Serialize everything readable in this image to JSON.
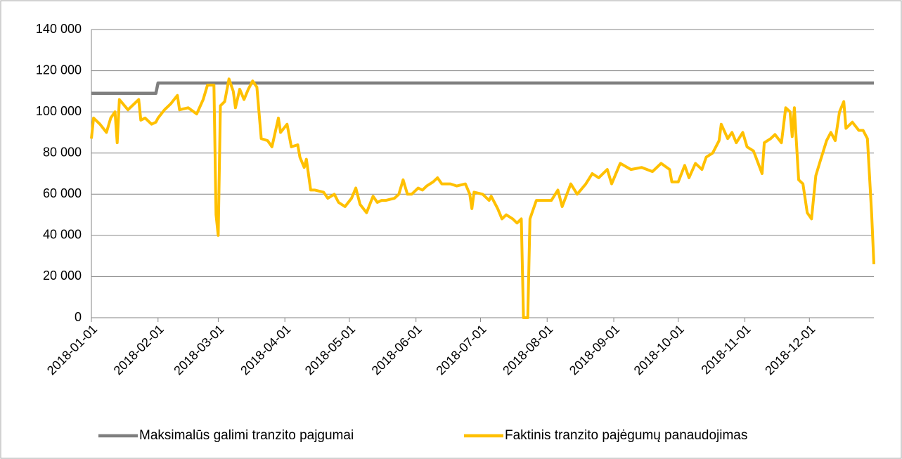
{
  "chart_data": {
    "type": "line",
    "x": [
      "2018-01-01",
      "2018-01-02",
      "2018-01-05",
      "2018-01-08",
      "2018-01-10",
      "2018-01-12",
      "2018-01-13",
      "2018-01-14",
      "2018-01-18",
      "2018-01-21",
      "2018-01-23",
      "2018-01-24",
      "2018-01-26",
      "2018-01-29",
      "2018-01-31",
      "2018-02-01",
      "2018-02-04",
      "2018-02-07",
      "2018-02-10",
      "2018-02-11",
      "2018-02-15",
      "2018-02-19",
      "2018-02-22",
      "2018-02-24",
      "2018-02-27",
      "2018-02-28",
      "2018-03-01",
      "2018-03-02",
      "2018-03-04",
      "2018-03-06",
      "2018-03-08",
      "2018-03-09",
      "2018-03-11",
      "2018-03-13",
      "2018-03-15",
      "2018-03-17",
      "2018-03-19",
      "2018-03-21",
      "2018-03-24",
      "2018-03-26",
      "2018-03-29",
      "2018-03-30",
      "2018-04-02",
      "2018-04-04",
      "2018-04-07",
      "2018-04-08",
      "2018-04-10",
      "2018-04-11",
      "2018-04-13",
      "2018-04-15",
      "2018-04-19",
      "2018-04-21",
      "2018-04-24",
      "2018-04-26",
      "2018-04-29",
      "2018-05-02",
      "2018-05-04",
      "2018-05-06",
      "2018-05-09",
      "2018-05-12",
      "2018-05-14",
      "2018-05-16",
      "2018-05-18",
      "2018-05-22",
      "2018-05-24",
      "2018-05-26",
      "2018-05-28",
      "2018-05-30",
      "2018-06-02",
      "2018-06-04",
      "2018-06-06",
      "2018-06-09",
      "2018-06-11",
      "2018-06-13",
      "2018-06-17",
      "2018-06-20",
      "2018-06-24",
      "2018-06-26",
      "2018-06-27",
      "2018-06-28",
      "2018-07-02",
      "2018-07-05",
      "2018-07-06",
      "2018-07-09",
      "2018-07-11",
      "2018-07-13",
      "2018-07-16",
      "2018-07-18",
      "2018-07-20",
      "2018-07-21",
      "2018-07-23",
      "2018-07-24",
      "2018-07-27",
      "2018-07-30",
      "2018-08-03",
      "2018-08-06",
      "2018-08-08",
      "2018-08-12",
      "2018-08-15",
      "2018-08-19",
      "2018-08-22",
      "2018-08-25",
      "2018-08-29",
      "2018-08-31",
      "2018-09-04",
      "2018-09-09",
      "2018-09-14",
      "2018-09-19",
      "2018-09-23",
      "2018-09-27",
      "2018-09-28",
      "2018-10-01",
      "2018-10-04",
      "2018-10-06",
      "2018-10-09",
      "2018-10-12",
      "2018-10-14",
      "2018-10-17",
      "2018-10-20",
      "2018-10-21",
      "2018-10-24",
      "2018-10-26",
      "2018-10-28",
      "2018-10-31",
      "2018-11-02",
      "2018-11-05",
      "2018-11-09",
      "2018-11-10",
      "2018-11-13",
      "2018-11-15",
      "2018-11-18",
      "2018-11-20",
      "2018-11-22",
      "2018-11-23",
      "2018-11-24",
      "2018-11-26",
      "2018-11-28",
      "2018-11-30",
      "2018-12-02",
      "2018-12-04",
      "2018-12-06",
      "2018-12-09",
      "2018-12-11",
      "2018-12-13",
      "2018-12-15",
      "2018-12-17",
      "2018-12-18",
      "2018-12-21",
      "2018-12-24",
      "2018-12-26",
      "2018-12-28",
      "2018-12-30",
      "2018-12-31"
    ],
    "series": [
      {
        "name": "Maksimalūs galimi tranzito pajgumai",
        "color": "#7f7f7f",
        "values": [
          109000,
          109000,
          109000,
          109000,
          109000,
          109000,
          109000,
          109000,
          109000,
          109000,
          109000,
          109000,
          109000,
          109000,
          109000,
          114000,
          114000,
          114000,
          114000,
          114000,
          114000,
          114000,
          114000,
          114000,
          114000,
          114000,
          114000,
          114000,
          114000,
          114000,
          114000,
          114000,
          114000,
          114000,
          114000,
          114000,
          114000,
          114000,
          114000,
          114000,
          114000,
          114000,
          114000,
          114000,
          114000,
          114000,
          114000,
          114000,
          114000,
          114000,
          114000,
          114000,
          114000,
          114000,
          114000,
          114000,
          114000,
          114000,
          114000,
          114000,
          114000,
          114000,
          114000,
          114000,
          114000,
          114000,
          114000,
          114000,
          114000,
          114000,
          114000,
          114000,
          114000,
          114000,
          114000,
          114000,
          114000,
          114000,
          114000,
          114000,
          114000,
          114000,
          114000,
          114000,
          114000,
          114000,
          114000,
          114000,
          114000,
          114000,
          114000,
          114000,
          114000,
          114000,
          114000,
          114000,
          114000,
          114000,
          114000,
          114000,
          114000,
          114000,
          114000,
          114000,
          114000,
          114000,
          114000,
          114000,
          114000,
          114000,
          114000,
          114000,
          114000,
          114000,
          114000,
          114000,
          114000,
          114000,
          114000,
          114000,
          114000,
          114000,
          114000,
          114000,
          114000,
          114000,
          114000,
          114000,
          114000,
          114000,
          114000,
          114000,
          114000,
          114000,
          114000,
          114000,
          114000,
          114000,
          114000,
          114000,
          114000,
          114000,
          114000,
          114000,
          114000,
          114000,
          114000,
          114000,
          114000,
          114000,
          114000,
          114000,
          114000
        ]
      },
      {
        "name": "Faktinis tranzito pajėgumų panaudojimas",
        "color": "#ffc000",
        "values": [
          87000,
          97000,
          94000,
          90000,
          97000,
          100000,
          85000,
          106000,
          101000,
          104000,
          106000,
          96000,
          97000,
          94000,
          95000,
          97000,
          101000,
          104000,
          108000,
          101000,
          102000,
          99000,
          106000,
          113000,
          113000,
          50000,
          40000,
          103000,
          105000,
          116000,
          110000,
          102000,
          111000,
          106000,
          111000,
          115000,
          112000,
          87000,
          86000,
          83000,
          97000,
          90000,
          94000,
          83000,
          84000,
          78000,
          73000,
          77000,
          62000,
          62000,
          61000,
          58000,
          60000,
          56000,
          54000,
          58000,
          63000,
          55000,
          51000,
          59000,
          56000,
          57000,
          57000,
          58000,
          60000,
          67000,
          60000,
          60000,
          63000,
          62000,
          64000,
          66000,
          68000,
          65000,
          65000,
          64000,
          65000,
          60000,
          53000,
          61000,
          60000,
          57000,
          59000,
          53000,
          48000,
          50000,
          48000,
          46000,
          48000,
          0,
          0,
          48000,
          57000,
          57000,
          57000,
          62000,
          54000,
          65000,
          60000,
          65000,
          70000,
          68000,
          72000,
          65000,
          75000,
          72000,
          73000,
          71000,
          75000,
          72000,
          66000,
          66000,
          74000,
          68000,
          75000,
          72000,
          78000,
          80000,
          86000,
          94000,
          87000,
          90000,
          85000,
          90000,
          83000,
          81000,
          70000,
          85000,
          87000,
          89000,
          85000,
          102000,
          100000,
          88000,
          102000,
          67000,
          65000,
          51000,
          48000,
          69000,
          76000,
          86000,
          90000,
          86000,
          100000,
          105000,
          92000,
          95000,
          91000,
          91000,
          87000,
          50000,
          26000
        ]
      }
    ],
    "xlim": [
      "2018-01-01",
      "2018-12-31"
    ],
    "xticks": [
      "2018-01-01",
      "2018-02-01",
      "2018-03-01",
      "2018-04-01",
      "2018-05-01",
      "2018-06-01",
      "2018-07-01",
      "2018-08-01",
      "2018-09-01",
      "2018-10-01",
      "2018-11-01",
      "2018-12-01"
    ],
    "ylim": [
      0,
      140000
    ],
    "yticks": [
      0,
      {
        "value": 20000,
        "label": "20 000"
      },
      {
        "value": 40000,
        "label": "40 000"
      },
      {
        "value": 60000,
        "label": "60 000"
      },
      {
        "value": 80000,
        "label": "80 000"
      },
      {
        "value": 100000,
        "label": "100 000"
      },
      {
        "value": 120000,
        "label": "120 000"
      },
      {
        "value": 140000,
        "label": "140 000"
      }
    ],
    "grid": true,
    "legend": "bottom"
  }
}
